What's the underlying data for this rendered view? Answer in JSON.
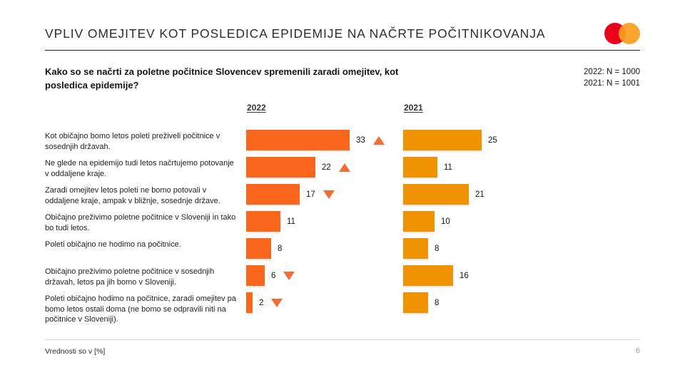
{
  "slide": {
    "title": "VPLIV OMEJITEV KOT POSLEDICA EPIDEMIJE NA NAČRTE POČITNIKOVANJA",
    "question": "Kako so se načrti za poletne počitnice Slovencev spremenili zaradi omejitev, kot posledica epidemije?",
    "sample_notes": [
      "2022: N = 1000",
      "2021: N = 1001"
    ],
    "footnote": "Vrednosti so v [%]",
    "page_number": "6"
  },
  "logo": {
    "name": "mastercard-logo",
    "red": "#EB001B",
    "orange": "#F79E1B"
  },
  "chart_data": {
    "type": "bar",
    "orientation": "horizontal",
    "unit": "%",
    "title": "Kako so se načrti za poletne počitnice Slovencev spremenili zaradi omejitev, kot posledica epidemije?",
    "legend_position": "column-headers-top",
    "grid": false,
    "xlim": [
      0,
      40
    ],
    "trend_arrow_color": "#F26C33",
    "categories": [
      "Kot običajno bomo letos poleti preživeli počitnice v sosednjih državah.",
      "Ne glede na epidemijo tudi letos načrtujemo potovanje v oddaljene kraje.",
      "Zaradi omejitev letos poleti ne bomo potovali v oddaljene kraje, ampak v bližnje, sosednje države.",
      "Običajno preživimo poletne počitnice v Sloveniji in tako bo tudi letos.",
      "Poleti običajno ne hodimo na počitnice.",
      "Običajno preživimo poletne počitnice v sosednjih državah, letos pa jih bomo v Sloveniji.",
      "Poleti običajno hodimo na počitnice, zaradi omejitev pa bomo letos ostali doma (ne bomo se odpravili niti na počitnice v Sloveniji)."
    ],
    "series": [
      {
        "name": "2022",
        "color": "#FA661C",
        "values": [
          33,
          22,
          17,
          11,
          8,
          6,
          2
        ],
        "trend": [
          "up",
          "up",
          "down",
          null,
          null,
          "down",
          "down"
        ]
      },
      {
        "name": "2021",
        "color": "#F09300",
        "values": [
          25,
          11,
          21,
          10,
          8,
          16,
          8
        ],
        "trend": [
          null,
          null,
          null,
          null,
          null,
          null,
          null
        ]
      }
    ]
  }
}
